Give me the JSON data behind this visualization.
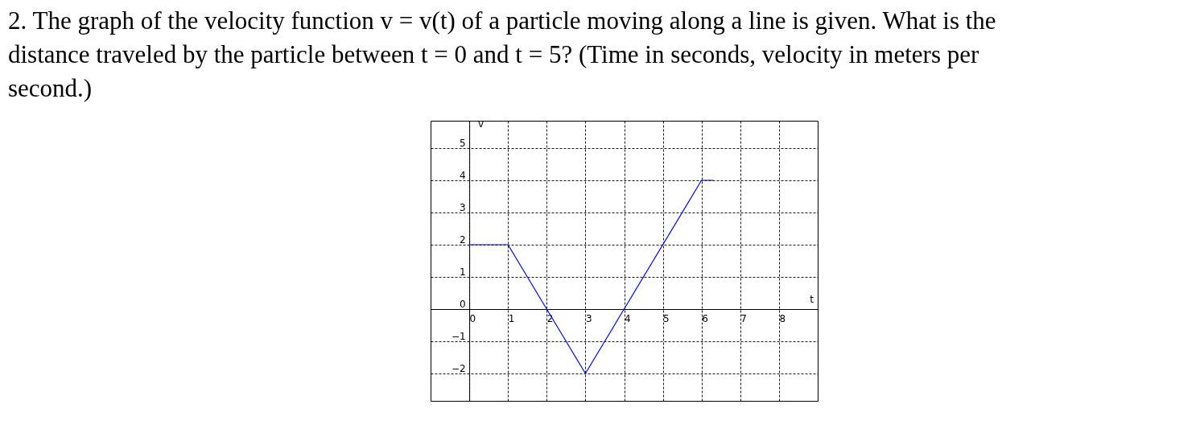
{
  "chart_data": {
    "type": "line",
    "title": "2. The graph of the velocity function v = v(t) of a particle moving along a line is given. What is the distance traveled by the particle between t = 0 and t = 5? (Time in seconds, velocity in meters per second.)",
    "xlabel": "t",
    "ylabel": "v",
    "x": [
      0,
      1,
      3,
      6,
      6.3
    ],
    "series": [
      {
        "color": "#0000ff",
        "values": [
          2,
          2,
          -2,
          4,
          4
        ]
      }
    ],
    "xlim": [
      -1,
      9
    ],
    "ylim": [
      -2.85,
      5.85
    ],
    "xticks": [
      0,
      1,
      2,
      3,
      4,
      5,
      6,
      7,
      8
    ],
    "yticks": [
      -2,
      -1,
      0,
      1,
      2,
      3,
      4,
      5
    ],
    "grid": true,
    "marker": "none",
    "line_style": "solid"
  }
}
